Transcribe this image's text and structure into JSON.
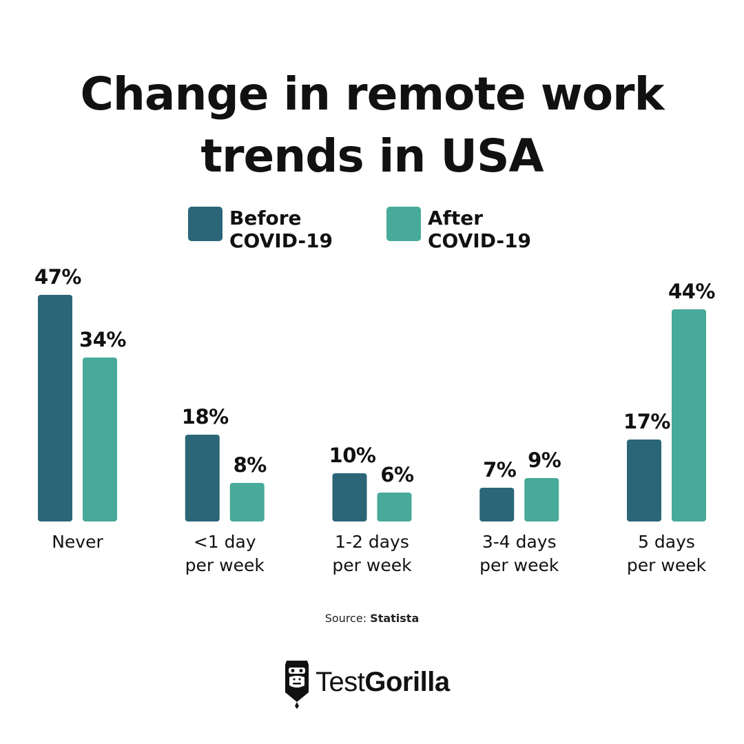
{
  "title": {
    "line1": "Change in remote work",
    "line2": "trends in USA"
  },
  "legend": {
    "before": {
      "line1": "Before",
      "line2": "COVID-19",
      "color": "#2a6677"
    },
    "after": {
      "line1": "After",
      "line2": "COVID-19",
      "color": "#48aa98"
    }
  },
  "chart_data": {
    "type": "bar",
    "title": "Change in remote work trends in USA",
    "categories": [
      [
        "Never"
      ],
      [
        "<1 day",
        "per week"
      ],
      [
        "1-2 days",
        "per week"
      ],
      [
        "3-4 days",
        "per week"
      ],
      [
        "5 days",
        "per week"
      ]
    ],
    "series": [
      {
        "name": "Before COVID-19",
        "values": [
          47,
          18,
          10,
          7,
          17
        ],
        "color": "#2a6677"
      },
      {
        "name": "After COVID-19",
        "values": [
          34,
          8,
          6,
          9,
          44
        ],
        "color": "#48aa98"
      }
    ],
    "value_suffix": "%",
    "grid": false,
    "legend_position": "top"
  },
  "source": {
    "prefix": "Source: ",
    "name": "Statista"
  },
  "brand": {
    "part1": "Test",
    "part2": "Gorilla",
    "icon": "gorilla-logo-icon"
  }
}
